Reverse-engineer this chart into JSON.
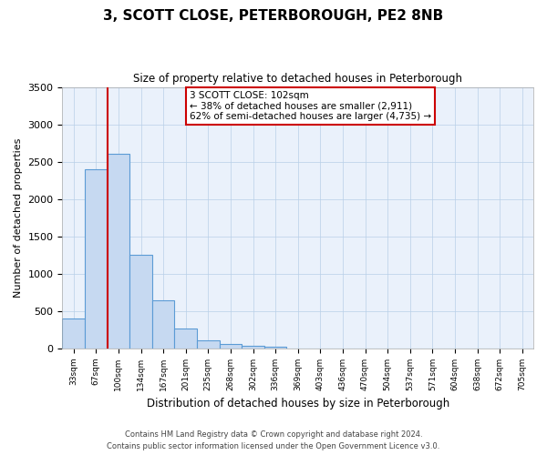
{
  "title": "3, SCOTT CLOSE, PETERBOROUGH, PE2 8NB",
  "subtitle": "Size of property relative to detached houses in Peterborough",
  "xlabel": "Distribution of detached houses by size in Peterborough",
  "ylabel": "Number of detached properties",
  "bar_values": [
    400,
    2400,
    2600,
    1250,
    640,
    260,
    110,
    55,
    30,
    15,
    0,
    0,
    0,
    0,
    0,
    0,
    0,
    0,
    0,
    0,
    0
  ],
  "bar_labels": [
    "33sqm",
    "67sqm",
    "100sqm",
    "134sqm",
    "167sqm",
    "201sqm",
    "235sqm",
    "268sqm",
    "302sqm",
    "336sqm",
    "369sqm",
    "403sqm",
    "436sqm",
    "470sqm",
    "504sqm",
    "537sqm",
    "571sqm",
    "604sqm",
    "638sqm",
    "672sqm",
    "705sqm"
  ],
  "bar_color": "#c6d9f1",
  "bar_edge_color": "#5b9bd5",
  "line_color": "#cc0000",
  "annotation_line1": "3 SCOTT CLOSE: 102sqm",
  "annotation_line2": "← 38% of detached houses are smaller (2,911)",
  "annotation_line3": "62% of semi-detached houses are larger (4,735) →",
  "annotation_box_color": "#ffffff",
  "annotation_box_edge": "#cc0000",
  "ylim": [
    0,
    3500
  ],
  "yticks": [
    0,
    500,
    1000,
    1500,
    2000,
    2500,
    3000,
    3500
  ],
  "footer1": "Contains HM Land Registry data © Crown copyright and database right 2024.",
  "footer2": "Contains public sector information licensed under the Open Government Licence v3.0.",
  "bg_color": "#eaf1fb",
  "fig_bg_color": "#ffffff",
  "num_bars": 21,
  "red_line_x": 2
}
